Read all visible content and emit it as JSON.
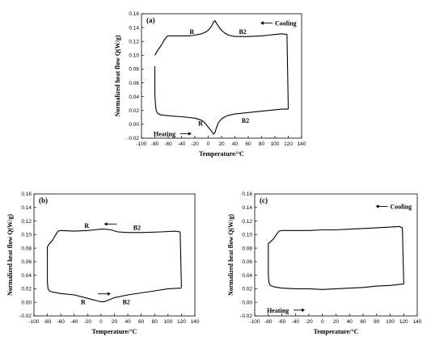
{
  "chart_data": [
    {
      "type": "line",
      "panel_label": "(a)",
      "xlabel": "Temperature/°C",
      "ylabel": "Normalized heat flow Q(W/g)",
      "xlim": [
        -100,
        140
      ],
      "ylim": [
        -0.02,
        0.16
      ],
      "xticks": [
        -100,
        -80,
        -60,
        -40,
        -20,
        0,
        20,
        40,
        60,
        80,
        100,
        120,
        140
      ],
      "yticks": [
        -0.02,
        0.0,
        0.02,
        0.04,
        0.06,
        0.08,
        0.1,
        0.12,
        0.14,
        0.16
      ],
      "ytick_labels": [
        "-0.02",
        "0.00",
        "0.02",
        "0.04",
        "0.06",
        "0.08",
        "0.10",
        "0.12",
        "0.14",
        "0.16"
      ],
      "grid": false,
      "series": [
        {
          "name": "Cooling",
          "x": [
            120,
            118,
            110,
            100,
            90,
            80,
            60,
            40,
            30,
            25,
            20,
            15,
            12,
            10,
            8,
            5,
            0,
            -5,
            -10,
            -20,
            -30,
            -40,
            -50,
            -60,
            -62,
            -66,
            -70,
            -75,
            -80
          ],
          "y": [
            0.022,
            0.13,
            0.131,
            0.13,
            0.129,
            0.128,
            0.127,
            0.127,
            0.129,
            0.132,
            0.136,
            0.142,
            0.147,
            0.15,
            0.148,
            0.142,
            0.136,
            0.133,
            0.131,
            0.129,
            0.128,
            0.128,
            0.128,
            0.128,
            0.127,
            0.122,
            0.115,
            0.108,
            0.1
          ]
        },
        {
          "name": "Heating",
          "x": [
            -80,
            -80,
            -79,
            -78,
            -76,
            -72,
            -65,
            -55,
            -40,
            -20,
            -10,
            -5,
            0,
            5,
            8,
            10,
            12,
            15,
            20,
            25,
            30,
            40,
            60,
            80,
            100,
            110,
            118,
            120
          ],
          "y": [
            0.084,
            0.045,
            0.028,
            0.02,
            0.016,
            0.014,
            0.013,
            0.012,
            0.011,
            0.009,
            0.006,
            0.002,
            -0.004,
            -0.01,
            -0.014,
            -0.012,
            -0.006,
            0.002,
            0.008,
            0.011,
            0.013,
            0.015,
            0.017,
            0.019,
            0.021,
            0.022,
            0.022,
            0.022
          ]
        }
      ],
      "annotations": [
        {
          "text": "R",
          "x": -28,
          "y": 0.131
        },
        {
          "text": "B2",
          "x": 46,
          "y": 0.131
        },
        {
          "text": "Cooling",
          "x": 100,
          "y": 0.143,
          "arrow": "left"
        },
        {
          "text": "R",
          "x": -15,
          "y": -0.002
        },
        {
          "text": "B2",
          "x": 50,
          "y": 0.002
        },
        {
          "text": "Heating",
          "x": -82,
          "y": -0.017,
          "arrow": "right"
        }
      ]
    },
    {
      "type": "line",
      "panel_label": "(b)",
      "xlabel": "Temperature/°C",
      "ylabel": "Normalized heat flow Q(W/g)",
      "xlim": [
        -100,
        140
      ],
      "ylim": [
        -0.02,
        0.16
      ],
      "xticks": [
        -100,
        -80,
        -60,
        -40,
        -20,
        0,
        20,
        40,
        60,
        80,
        100,
        120,
        140
      ],
      "yticks": [
        -0.02,
        0.0,
        0.02,
        0.04,
        0.06,
        0.08,
        0.1,
        0.12,
        0.14,
        0.16
      ],
      "ytick_labels": [
        "-0.02",
        "0.00",
        "0.02",
        "0.04",
        "0.06",
        "0.08",
        "0.10",
        "0.12",
        "0.14",
        "0.16"
      ],
      "grid": false,
      "series": [
        {
          "name": "Cooling",
          "x": [
            120,
            118,
            110,
            90,
            60,
            40,
            25,
            15,
            5,
            0,
            -10,
            -20,
            -40,
            -60,
            -64,
            -68,
            -72,
            -78,
            -80
          ],
          "y": [
            0.022,
            0.104,
            0.105,
            0.104,
            0.103,
            0.103,
            0.104,
            0.107,
            0.108,
            0.108,
            0.107,
            0.106,
            0.105,
            0.106,
            0.105,
            0.099,
            0.092,
            0.085,
            0.082
          ]
        },
        {
          "name": "Heating",
          "x": [
            -80,
            -80,
            -79,
            -77,
            -72,
            -60,
            -40,
            -20,
            -5,
            0,
            5,
            10,
            20,
            40,
            60,
            80,
            100,
            118,
            120
          ],
          "y": [
            0.082,
            0.03,
            0.02,
            0.017,
            0.015,
            0.013,
            0.011,
            0.006,
            0.002,
            0.001,
            0.001,
            0.003,
            0.007,
            0.011,
            0.014,
            0.017,
            0.02,
            0.021,
            0.021
          ]
        }
      ],
      "annotations": [
        {
          "text": "R",
          "x": -25,
          "y": 0.11
        },
        {
          "text": "B2",
          "x": 48,
          "y": 0.107
        },
        {
          "text": "",
          "x": 14,
          "y": 0.112,
          "arrow": "left"
        },
        {
          "text": "R",
          "x": -30,
          "y": -0.003
        },
        {
          "text": "B2",
          "x": 32,
          "y": -0.003
        },
        {
          "text": "",
          "x": 5,
          "y": 0.009,
          "arrow": "right"
        }
      ]
    },
    {
      "type": "line",
      "panel_label": "(c)",
      "xlabel": "Temperature/°C",
      "ylabel": "Normalized heat flow Q(W/g)",
      "xlim": [
        -100,
        140
      ],
      "ylim": [
        -0.02,
        0.16
      ],
      "xticks": [
        -100,
        -80,
        -60,
        -40,
        -20,
        0,
        20,
        40,
        60,
        80,
        100,
        120,
        140
      ],
      "yticks": [
        -0.02,
        0.0,
        0.02,
        0.04,
        0.06,
        0.08,
        0.1,
        0.12,
        0.14,
        0.16
      ],
      "ytick_labels": [
        "-0.02",
        "0.00",
        "0.02",
        "0.04",
        "0.06",
        "0.08",
        "0.10",
        "0.12",
        "0.14",
        "0.16"
      ],
      "grid": false,
      "series": [
        {
          "name": "Cooling",
          "x": [
            120,
            118,
            113,
            100,
            80,
            60,
            40,
            20,
            0,
            -20,
            -40,
            -60,
            -64,
            -68,
            -72,
            -78,
            -80
          ],
          "y": [
            0.027,
            0.11,
            0.112,
            0.111,
            0.11,
            0.109,
            0.108,
            0.107,
            0.107,
            0.106,
            0.106,
            0.106,
            0.105,
            0.1,
            0.094,
            0.088,
            0.087
          ]
        },
        {
          "name": "Heating",
          "x": [
            -80,
            -80,
            -79,
            -77,
            -72,
            -60,
            -40,
            -20,
            0,
            20,
            40,
            60,
            80,
            100,
            118,
            120
          ],
          "y": [
            0.087,
            0.04,
            0.029,
            0.025,
            0.023,
            0.021,
            0.02,
            0.02,
            0.019,
            0.02,
            0.021,
            0.022,
            0.024,
            0.025,
            0.027,
            0.027
          ]
        }
      ],
      "annotations": [
        {
          "text": "Cooling",
          "x": 100,
          "y": 0.138,
          "arrow": "left"
        },
        {
          "text": "Heating",
          "x": -82,
          "y": -0.015,
          "arrow": "right"
        }
      ]
    }
  ]
}
